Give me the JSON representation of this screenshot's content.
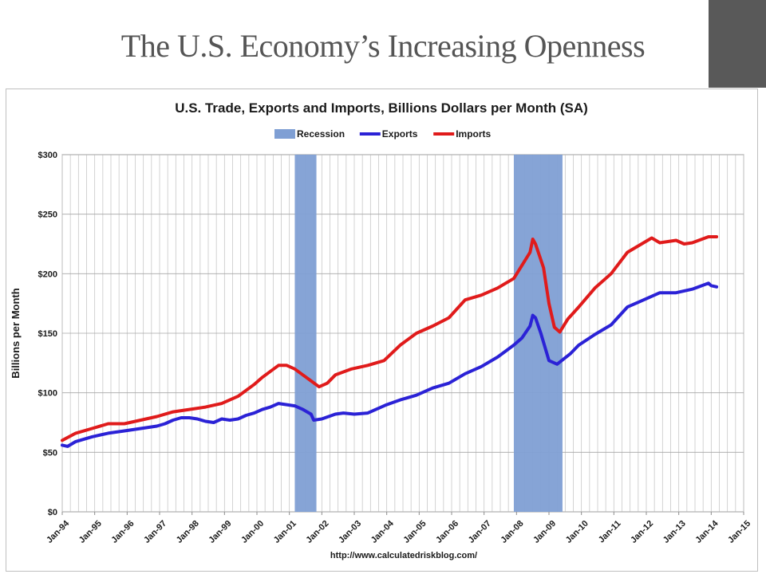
{
  "slide": {
    "title": "The U.S. Economy’s Increasing Openness",
    "accent_color": "#595959"
  },
  "chart_data": {
    "type": "line",
    "title": "U.S. Trade, Exports and Imports, Billions Dollars per Month (SA)",
    "ylabel": "Billions per Month",
    "xlabel": "",
    "source": "http://www.calculatedriskblog.com/",
    "legend_position": "top-center",
    "grid": true,
    "xlim": [
      "Jan-94",
      "Jan-15"
    ],
    "ylim": [
      0,
      300
    ],
    "y_ticks": [
      0,
      50,
      100,
      150,
      200,
      250,
      300
    ],
    "y_tick_labels": [
      "$0",
      "$50",
      "$100",
      "$150",
      "$200",
      "$250",
      "$300"
    ],
    "x_tick_labels": [
      "Jan-94",
      "Jan-95",
      "Jan-96",
      "Jan-97",
      "Jan-98",
      "Jan-99",
      "Jan-00",
      "Jan-01",
      "Jan-02",
      "Jan-03",
      "Jan-04",
      "Jan-05",
      "Jan-06",
      "Jan-07",
      "Jan-08",
      "Jan-09",
      "Jan-10",
      "Jan-11",
      "Jan-12",
      "Jan-13",
      "Jan-14",
      "Jan-15"
    ],
    "recessions": [
      {
        "name": "Recession",
        "start": "2001-03",
        "end": "2001-11",
        "color": "#7f9fd4"
      },
      {
        "name": "Recession",
        "start": "2007-12",
        "end": "2009-06",
        "color": "#7f9fd4"
      }
    ],
    "legend": [
      {
        "name": "Recession",
        "kind": "band",
        "color": "#7f9fd4"
      },
      {
        "name": "Exports",
        "kind": "line",
        "color": "#2b22d6"
      },
      {
        "name": "Imports",
        "kind": "line",
        "color": "#e01b1b"
      }
    ],
    "series": [
      {
        "name": "Exports",
        "color": "#2b22d6",
        "points": [
          [
            "1994-01",
            56
          ],
          [
            "1994-03",
            55
          ],
          [
            "1994-06",
            59
          ],
          [
            "1994-09",
            61
          ],
          [
            "1994-12",
            63
          ],
          [
            "1995-06",
            66
          ],
          [
            "1995-12",
            68
          ],
          [
            "1996-06",
            70
          ],
          [
            "1996-12",
            72
          ],
          [
            "1997-03",
            74
          ],
          [
            "1997-06",
            77
          ],
          [
            "1997-09",
            79
          ],
          [
            "1997-12",
            79
          ],
          [
            "1998-03",
            78
          ],
          [
            "1998-06",
            76
          ],
          [
            "1998-09",
            75
          ],
          [
            "1998-12",
            78
          ],
          [
            "1999-03",
            77
          ],
          [
            "1999-06",
            78
          ],
          [
            "1999-09",
            81
          ],
          [
            "1999-12",
            83
          ],
          [
            "2000-03",
            86
          ],
          [
            "2000-06",
            88
          ],
          [
            "2000-09",
            91
          ],
          [
            "2000-12",
            90
          ],
          [
            "2001-03",
            89
          ],
          [
            "2001-06",
            86
          ],
          [
            "2001-09",
            82
          ],
          [
            "2001-10",
            77
          ],
          [
            "2002-01",
            78
          ],
          [
            "2002-06",
            82
          ],
          [
            "2002-09",
            83
          ],
          [
            "2003-01",
            82
          ],
          [
            "2003-06",
            83
          ],
          [
            "2003-09",
            86
          ],
          [
            "2004-01",
            90
          ],
          [
            "2004-06",
            94
          ],
          [
            "2004-12",
            98
          ],
          [
            "2005-06",
            104
          ],
          [
            "2005-12",
            108
          ],
          [
            "2006-06",
            116
          ],
          [
            "2006-12",
            122
          ],
          [
            "2007-06",
            130
          ],
          [
            "2007-12",
            140
          ],
          [
            "2008-03",
            146
          ],
          [
            "2008-06",
            156
          ],
          [
            "2008-07",
            165
          ],
          [
            "2008-08",
            163
          ],
          [
            "2008-10",
            150
          ],
          [
            "2009-01",
            127
          ],
          [
            "2009-04",
            124
          ],
          [
            "2009-09",
            133
          ],
          [
            "2009-12",
            140
          ],
          [
            "2010-06",
            149
          ],
          [
            "2010-12",
            157
          ],
          [
            "2011-06",
            172
          ],
          [
            "2011-12",
            178
          ],
          [
            "2012-06",
            184
          ],
          [
            "2012-12",
            184
          ],
          [
            "2013-06",
            187
          ],
          [
            "2013-12",
            192
          ],
          [
            "2014-01",
            190
          ],
          [
            "2014-03",
            189
          ]
        ]
      },
      {
        "name": "Imports",
        "color": "#e01b1b",
        "points": [
          [
            "1994-01",
            60
          ],
          [
            "1994-06",
            66
          ],
          [
            "1994-12",
            70
          ],
          [
            "1995-06",
            74
          ],
          [
            "1995-12",
            74
          ],
          [
            "1996-06",
            77
          ],
          [
            "1996-12",
            80
          ],
          [
            "1997-06",
            84
          ],
          [
            "1997-12",
            86
          ],
          [
            "1998-06",
            88
          ],
          [
            "1998-12",
            91
          ],
          [
            "1999-06",
            97
          ],
          [
            "1999-12",
            107
          ],
          [
            "2000-03",
            113
          ],
          [
            "2000-06",
            118
          ],
          [
            "2000-09",
            123
          ],
          [
            "2000-12",
            123
          ],
          [
            "2001-03",
            120
          ],
          [
            "2001-06",
            115
          ],
          [
            "2001-09",
            110
          ],
          [
            "2001-12",
            105
          ],
          [
            "2002-03",
            108
          ],
          [
            "2002-06",
            115
          ],
          [
            "2002-12",
            120
          ],
          [
            "2003-06",
            123
          ],
          [
            "2003-12",
            127
          ],
          [
            "2004-06",
            140
          ],
          [
            "2004-12",
            150
          ],
          [
            "2005-06",
            156
          ],
          [
            "2005-12",
            163
          ],
          [
            "2006-06",
            178
          ],
          [
            "2006-12",
            182
          ],
          [
            "2007-06",
            188
          ],
          [
            "2007-12",
            196
          ],
          [
            "2008-03",
            207
          ],
          [
            "2008-06",
            218
          ],
          [
            "2008-07",
            229
          ],
          [
            "2008-08",
            225
          ],
          [
            "2008-11",
            205
          ],
          [
            "2009-01",
            175
          ],
          [
            "2009-03",
            155
          ],
          [
            "2009-05",
            151
          ],
          [
            "2009-08",
            162
          ],
          [
            "2009-12",
            172
          ],
          [
            "2010-06",
            188
          ],
          [
            "2010-12",
            200
          ],
          [
            "2011-06",
            218
          ],
          [
            "2011-12",
            226
          ],
          [
            "2012-03",
            230
          ],
          [
            "2012-06",
            226
          ],
          [
            "2012-12",
            228
          ],
          [
            "2013-03",
            225
          ],
          [
            "2013-06",
            226
          ],
          [
            "2013-12",
            231
          ],
          [
            "2014-03",
            231
          ]
        ]
      }
    ]
  }
}
